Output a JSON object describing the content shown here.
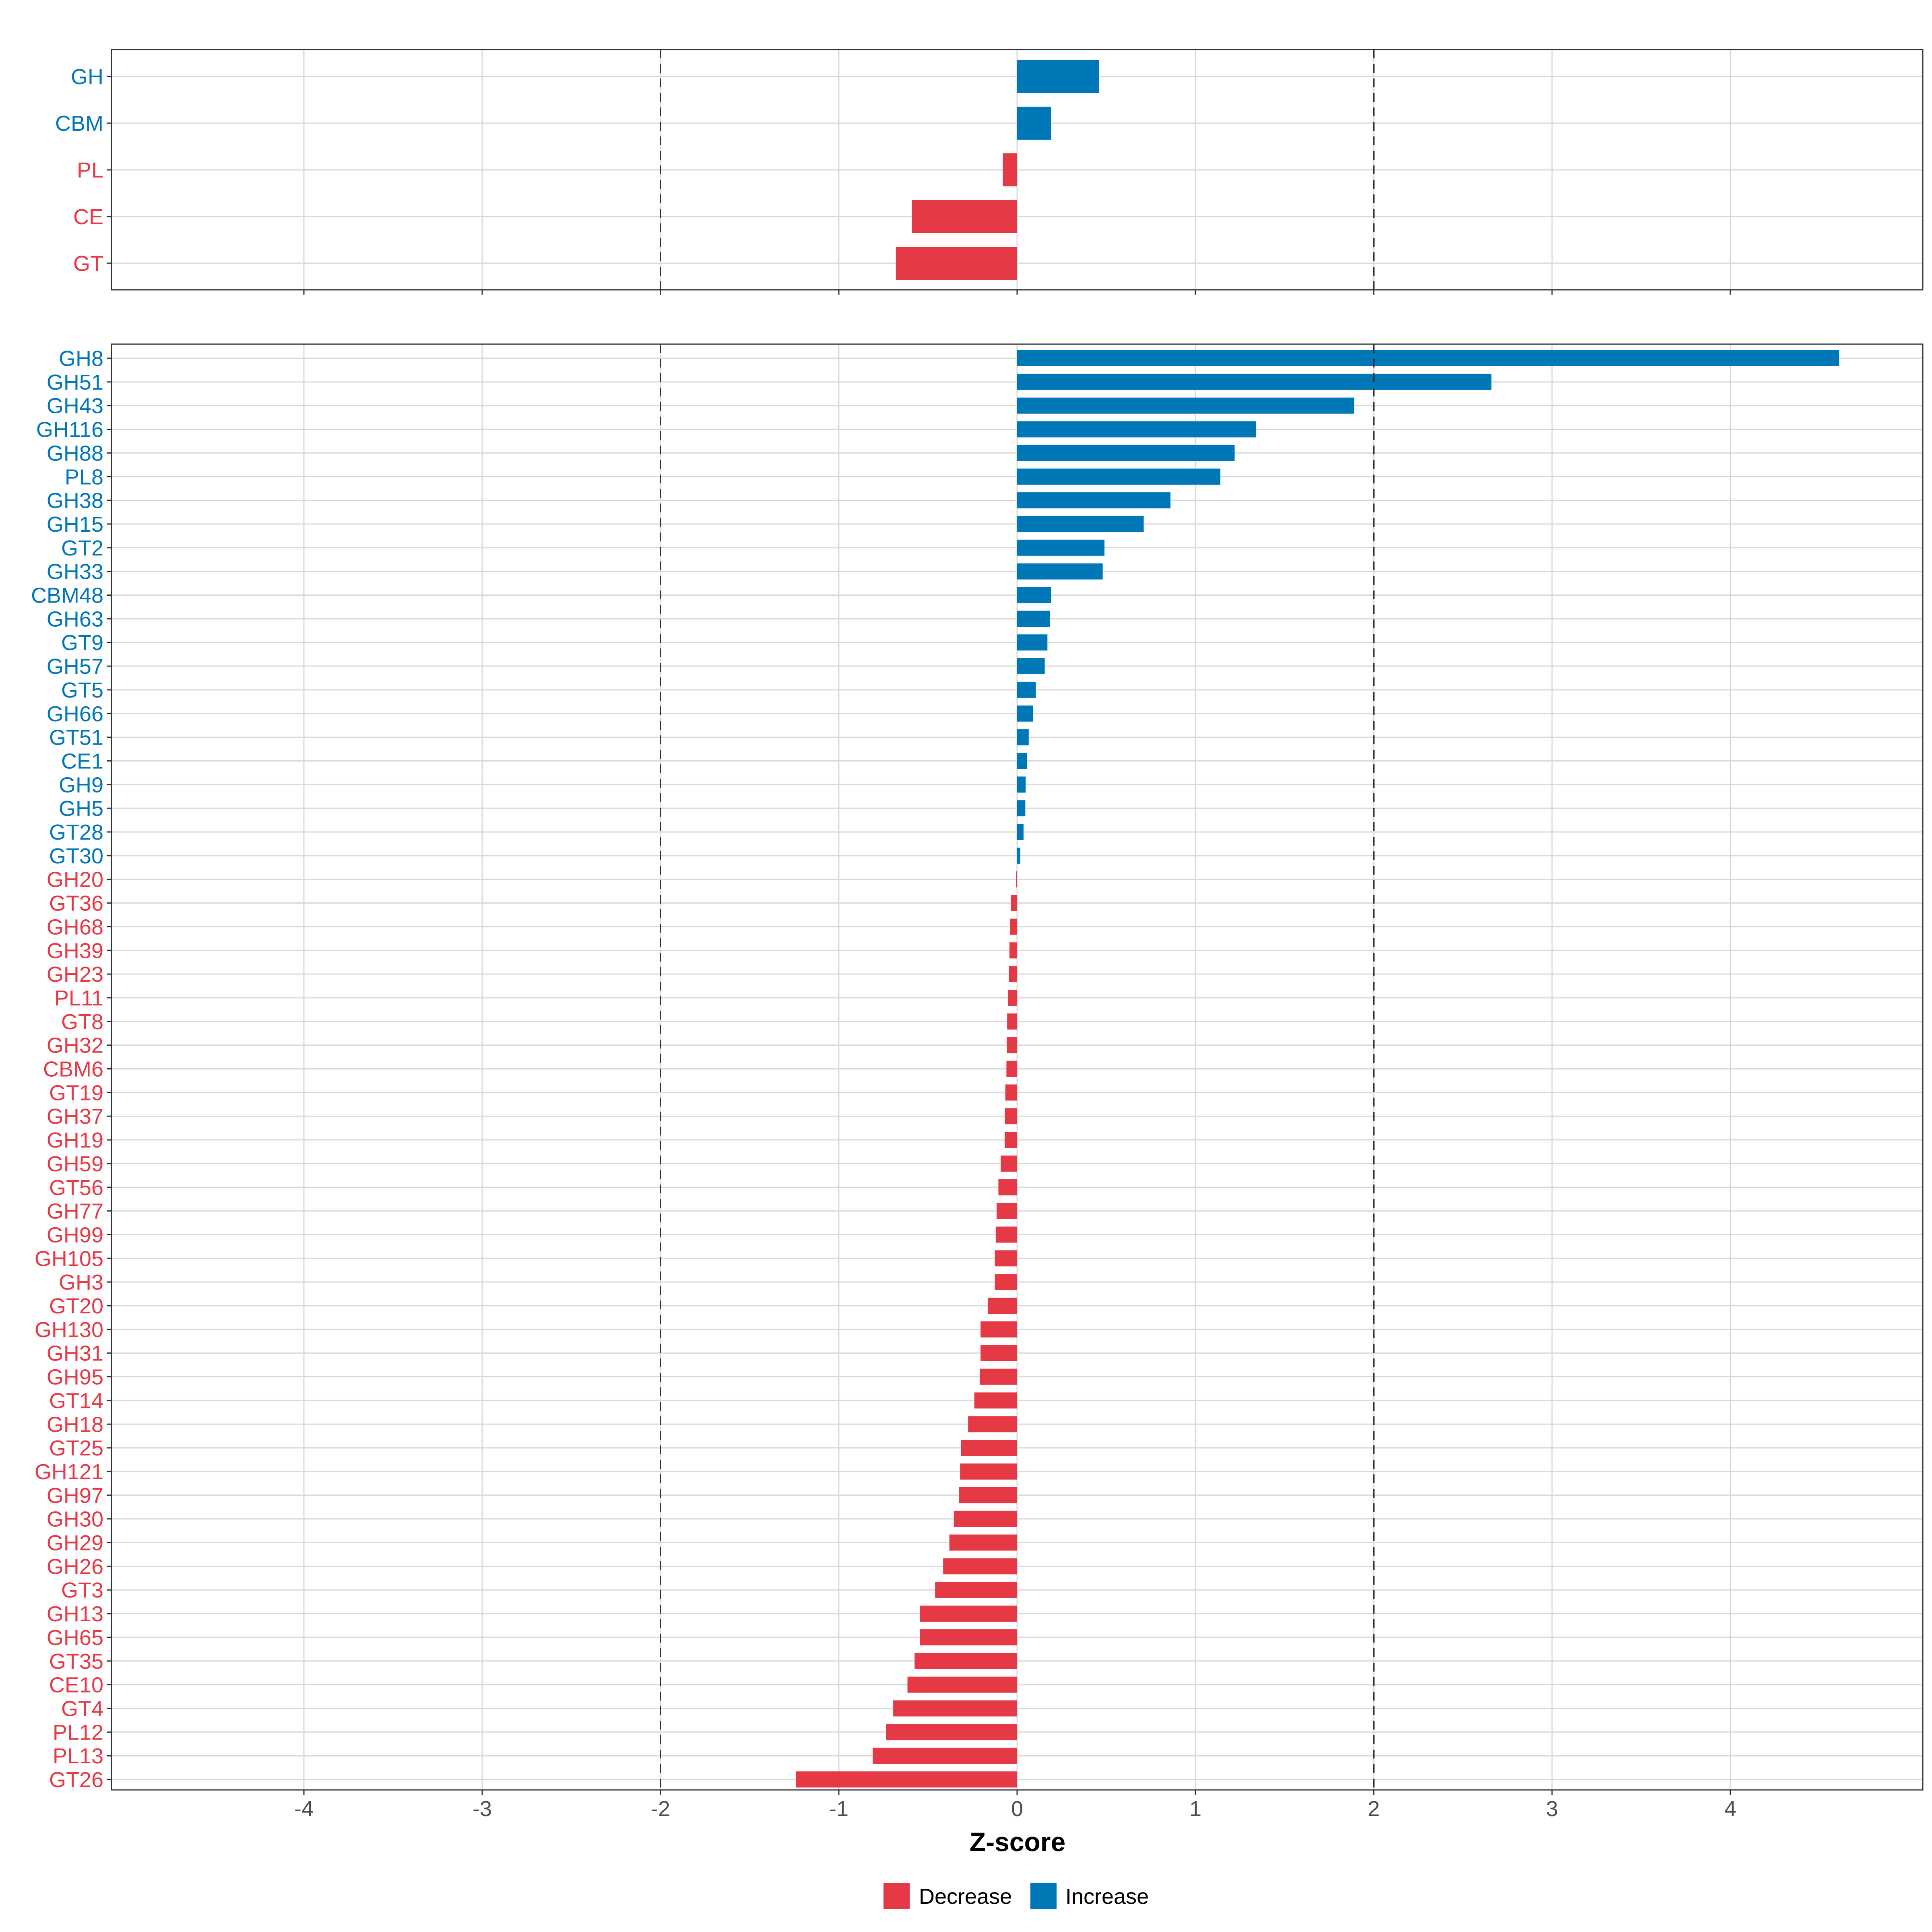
{
  "chart_data": {
    "type": "bar",
    "orientation": "horizontal",
    "xlabel": "Z-score",
    "xlim": [
      -5.0,
      5.0
    ],
    "xticks": [
      -4,
      -3,
      -2,
      -1,
      0,
      1,
      2,
      3,
      4
    ],
    "xtick_labels": [
      "-4",
      "-3",
      "-2",
      "-1",
      "0",
      "1",
      "2",
      "3",
      "4"
    ],
    "threshold_lines": [
      -2,
      2
    ],
    "grid": true,
    "colors": {
      "Decrease": "#E63946",
      "Increase": "#0077B6"
    },
    "legend": {
      "placement": "bottom",
      "entries": [
        {
          "label": "Decrease",
          "color": "#E63946"
        },
        {
          "label": "Increase",
          "color": "#0077B6"
        }
      ]
    },
    "panels": [
      {
        "name": "class",
        "categories": [
          "GH",
          "CBM",
          "PL",
          "CE",
          "GT"
        ],
        "values": [
          0.46,
          0.19,
          -0.08,
          -0.59,
          -0.68
        ]
      },
      {
        "name": "family",
        "categories": [
          "GH8",
          "GH51",
          "GH43",
          "GH116",
          "GH88",
          "PL8",
          "GH38",
          "GH15",
          "GT2",
          "GH33",
          "CBM48",
          "GH63",
          "GT9",
          "GH57",
          "GT5",
          "GH66",
          "GT51",
          "CE1",
          "GH9",
          "GH5",
          "GT28",
          "GT30",
          "GH20",
          "GT36",
          "GH68",
          "GH39",
          "GH23",
          "PL11",
          "GT8",
          "GH32",
          "CBM6",
          "GT19",
          "GH37",
          "GH19",
          "GH59",
          "GT56",
          "GH77",
          "GH99",
          "GH105",
          "GH3",
          "GT20",
          "GH130",
          "GH31",
          "GH95",
          "GT14",
          "GH18",
          "GT25",
          "GH121",
          "GH97",
          "GH30",
          "GH29",
          "GH26",
          "GT3",
          "GH13",
          "GH65",
          "GT35",
          "CE10",
          "GT4",
          "PL12",
          "PL13",
          "GT26"
        ],
        "values": [
          4.61,
          2.66,
          1.89,
          1.34,
          1.22,
          1.14,
          0.86,
          0.71,
          0.49,
          0.48,
          0.19,
          0.185,
          0.17,
          0.155,
          0.105,
          0.09,
          0.065,
          0.055,
          0.048,
          0.046,
          0.036,
          0.018,
          -0.005,
          -0.035,
          -0.04,
          -0.043,
          -0.046,
          -0.052,
          -0.056,
          -0.058,
          -0.06,
          -0.066,
          -0.068,
          -0.07,
          -0.092,
          -0.105,
          -0.115,
          -0.12,
          -0.125,
          -0.125,
          -0.165,
          -0.205,
          -0.205,
          -0.21,
          -0.24,
          -0.275,
          -0.315,
          -0.32,
          -0.325,
          -0.355,
          -0.38,
          -0.415,
          -0.46,
          -0.545,
          -0.545,
          -0.575,
          -0.615,
          -0.695,
          -0.735,
          -0.81,
          -1.24
        ]
      }
    ]
  }
}
